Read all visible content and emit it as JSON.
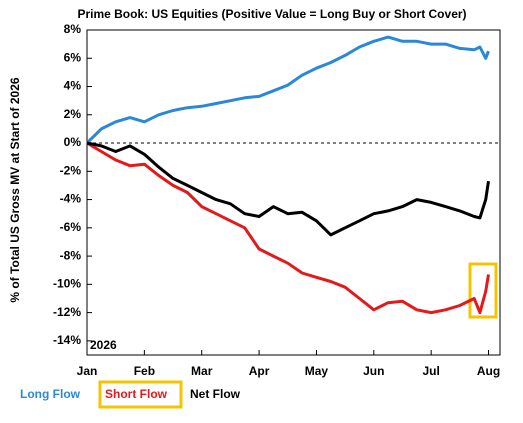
{
  "chart_data": {
    "type": "line",
    "title": "Prime Book: US Equities (Positive Value = Long Buy or Short Cover)",
    "y_label": "% of Total US Gross MV at Start of 2026",
    "annotation": "2026",
    "x": [
      0,
      0.25,
      0.5,
      0.75,
      1,
      1.25,
      1.5,
      1.75,
      2,
      2.25,
      2.5,
      2.75,
      3,
      3.25,
      3.5,
      3.75,
      4,
      4.25,
      4.5,
      4.75,
      5,
      5.25,
      5.5,
      5.75,
      6,
      6.25,
      6.5,
      6.75,
      6.85,
      6.95,
      7.0
    ],
    "series": [
      {
        "name": "Long Flow",
        "color": "#2b87d8",
        "values": [
          0,
          1,
          1.5,
          1.8,
          1.5,
          2,
          2.3,
          2.5,
          2.6,
          2.8,
          3,
          3.2,
          3.3,
          3.7,
          4.1,
          4.8,
          5.3,
          5.7,
          6.2,
          6.8,
          7.2,
          7.5,
          7.2,
          7.2,
          7.0,
          7.0,
          6.7,
          6.6,
          6.8,
          6.0,
          6.5
        ]
      },
      {
        "name": "Short Flow",
        "color": "#e3191c",
        "values": [
          0,
          -0.6,
          -1.2,
          -1.6,
          -1.5,
          -2.3,
          -3,
          -3.5,
          -4.5,
          -5,
          -5.5,
          -6,
          -7.5,
          -8,
          -8.5,
          -9.2,
          -9.5,
          -9.8,
          -10.2,
          -11,
          -11.8,
          -11.3,
          -11.2,
          -11.8,
          -12,
          -11.8,
          -11.5,
          -11,
          -12,
          -10.5,
          -9.3
        ]
      },
      {
        "name": "Net Flow",
        "color": "#000000",
        "values": [
          0,
          -0.2,
          -0.6,
          -0.2,
          -0.8,
          -1.7,
          -2.5,
          -3,
          -3.5,
          -4,
          -4.3,
          -5,
          -5.2,
          -4.5,
          -5,
          -4.9,
          -5.5,
          -6.5,
          -6,
          -5.5,
          -5,
          -4.8,
          -4.5,
          -4,
          -4.2,
          -4.5,
          -4.8,
          -5.2,
          -5.3,
          -4,
          -2.7
        ]
      }
    ],
    "xlim": [
      0,
      7.2
    ],
    "xticks": [
      {
        "value": 0,
        "label": "Jan"
      },
      {
        "value": 1,
        "label": "Feb"
      },
      {
        "value": 2,
        "label": "Mar"
      },
      {
        "value": 3,
        "label": "Apr"
      },
      {
        "value": 4,
        "label": "May"
      },
      {
        "value": 5,
        "label": "Jun"
      },
      {
        "value": 6,
        "label": "Jul"
      },
      {
        "value": 7,
        "label": "Aug"
      }
    ],
    "ylim": [
      -15,
      8
    ],
    "yticks": [
      {
        "value": 8,
        "label": "8%"
      },
      {
        "value": 6,
        "label": "6%"
      },
      {
        "value": 4,
        "label": "4%"
      },
      {
        "value": 2,
        "label": "2%"
      },
      {
        "value": 0,
        "label": "0%"
      },
      {
        "value": -2,
        "label": "-2%"
      },
      {
        "value": -4,
        "label": "-4%"
      },
      {
        "value": -6,
        "label": "-6%"
      },
      {
        "value": -8,
        "label": "-8%"
      },
      {
        "value": -10,
        "label": "-10%"
      },
      {
        "value": -12,
        "label": "-12%"
      },
      {
        "value": -14,
        "label": "-14%"
      }
    ],
    "zero_line": true
  }
}
